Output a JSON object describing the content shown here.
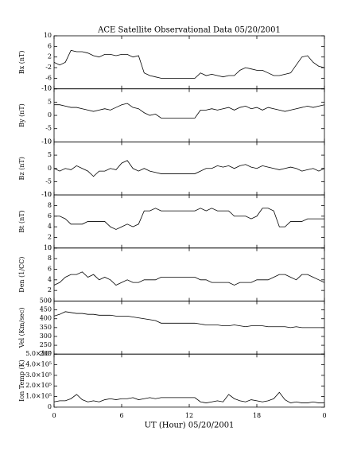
{
  "chart_data": {
    "type": "line",
    "title": "ACE Satellite Observational Data   05/20/2001",
    "xlabel": "UT (Hour)   05/20/2001",
    "xlim": [
      0,
      24
    ],
    "xticks": [
      0,
      6,
      12,
      18,
      {
        "value": 24,
        "label": "0"
      }
    ],
    "x": [
      0,
      0.5,
      1,
      1.5,
      2,
      2.5,
      3,
      3.5,
      4,
      4.5,
      5,
      5.5,
      6,
      6.5,
      7,
      7.5,
      8,
      8.5,
      9,
      9.5,
      10,
      10.5,
      11,
      11.5,
      12,
      12.5,
      13,
      13.5,
      14,
      14.5,
      15,
      15.5,
      16,
      16.5,
      17,
      17.5,
      18,
      18.5,
      19,
      19.5,
      20,
      20.5,
      21,
      21.5,
      22,
      22.5,
      23,
      23.5,
      24
    ],
    "color": "#000000",
    "panels": [
      {
        "ylabel": "Bx (nT)",
        "ylim": [
          -10,
          10
        ],
        "yticks": [
          -10,
          -6,
          -2,
          2,
          6,
          10
        ],
        "values": [
          0,
          -1,
          0,
          4.5,
          4,
          4,
          3.5,
          2.5,
          2,
          3,
          3,
          2.5,
          3,
          3,
          2,
          2.5,
          -4,
          -5,
          -5.5,
          -6,
          -6,
          -6,
          -6,
          -6,
          -6,
          -6,
          -4,
          -5,
          -4.5,
          -5,
          -5.5,
          -5,
          -5,
          -3,
          -2,
          -2.5,
          -3,
          -3,
          -4,
          -5,
          -5,
          -4.5,
          -4,
          -1,
          2,
          2.5,
          0,
          -1.5,
          -2
        ]
      },
      {
        "ylabel": "By (nT)",
        "ylim": [
          -10,
          10
        ],
        "yticks": [
          -10,
          -5,
          0,
          5,
          10
        ],
        "values": [
          4,
          4,
          3.5,
          3,
          3,
          2.5,
          2,
          1.5,
          2,
          2.5,
          2,
          3,
          4,
          4.5,
          3,
          2.5,
          1,
          0,
          0.5,
          -1,
          -1,
          -1,
          -1,
          -1,
          -1,
          -1,
          2,
          2,
          2.5,
          2,
          2.5,
          3,
          2,
          3,
          3.5,
          2.5,
          3,
          2,
          3,
          2.5,
          2,
          1.5,
          2,
          2.5,
          3,
          3.5,
          3,
          3.5,
          4
        ]
      },
      {
        "ylabel": "Bz (nT)",
        "ylim": [
          -10,
          10
        ],
        "yticks": [
          -10,
          -5,
          0,
          5,
          10
        ],
        "values": [
          0,
          -1,
          0,
          -0.5,
          1,
          0,
          -1,
          -3,
          -1,
          -1,
          0,
          -0.5,
          2,
          3,
          0,
          -1,
          0,
          -1,
          -1.5,
          -2,
          -2,
          -2,
          -2,
          -2,
          -2,
          -2,
          -1,
          0,
          0,
          1,
          0.5,
          1,
          0,
          1,
          1.5,
          0.5,
          0,
          1,
          0.5,
          0,
          -0.5,
          0,
          0.5,
          0,
          -1,
          -0.5,
          0,
          -1,
          0
        ]
      },
      {
        "ylabel": "Bt (nT)",
        "ylim": [
          0,
          10
        ],
        "yticks": [
          0,
          2,
          4,
          6,
          8,
          10
        ],
        "values": [
          6,
          6,
          5.5,
          4.5,
          4.5,
          4.5,
          5,
          5,
          5,
          5,
          4,
          3.5,
          4,
          4.5,
          4,
          4.5,
          7,
          7,
          7.5,
          7,
          7,
          7,
          7,
          7,
          7,
          7,
          7.5,
          7,
          7.5,
          7,
          7,
          7,
          6,
          6,
          6,
          5.5,
          6,
          7.5,
          7.5,
          7,
          4,
          4,
          5,
          5,
          5,
          5.5,
          5.5,
          5.5,
          5.5
        ]
      },
      {
        "ylabel": "Den (1/CC)",
        "ylim": [
          0,
          10
        ],
        "yticks": [
          0,
          2,
          4,
          6,
          8,
          10
        ],
        "values": [
          3,
          3.5,
          4.5,
          5,
          5,
          5.5,
          4.5,
          5,
          4,
          4.5,
          4,
          3,
          3.5,
          4,
          3.5,
          3.5,
          4,
          4,
          4,
          4.5,
          4.5,
          4.5,
          4.5,
          4.5,
          4.5,
          4.5,
          4,
          4,
          3.5,
          3.5,
          3.5,
          3.5,
          3,
          3.5,
          3.5,
          3.5,
          4,
          4,
          4,
          4.5,
          5,
          5,
          4.5,
          4,
          5,
          5,
          4.5,
          4,
          3.5
        ]
      },
      {
        "ylabel": "Vel (Km/sec)",
        "ylim": [
          200,
          500
        ],
        "yticks": [
          200,
          250,
          300,
          350,
          400,
          450,
          500
        ],
        "values": [
          415,
          425,
          440,
          435,
          430,
          430,
          425,
          425,
          420,
          420,
          420,
          415,
          415,
          415,
          410,
          405,
          400,
          395,
          390,
          375,
          375,
          375,
          375,
          375,
          375,
          375,
          370,
          365,
          365,
          365,
          360,
          360,
          365,
          360,
          355,
          360,
          360,
          360,
          355,
          355,
          355,
          355,
          350,
          355,
          350,
          350,
          350,
          350,
          350
        ]
      },
      {
        "ylabel": "Ion Temp (K)",
        "ylim": [
          0,
          500000
        ],
        "yticks": [
          0,
          {
            "value": 100000,
            "label": "1.0×10⁵"
          },
          {
            "value": 200000,
            "label": "2.0×10⁵"
          },
          {
            "value": 300000,
            "label": "3.0×10⁵"
          },
          {
            "value": 400000,
            "label": "4.0×10⁵"
          },
          {
            "value": 500000,
            "label": "5.0×10⁵"
          }
        ],
        "values": [
          50000,
          60000,
          60000,
          80000,
          120000,
          70000,
          50000,
          60000,
          50000,
          70000,
          80000,
          70000,
          80000,
          80000,
          90000,
          70000,
          80000,
          90000,
          80000,
          90000,
          90000,
          90000,
          90000,
          90000,
          90000,
          90000,
          50000,
          40000,
          50000,
          60000,
          50000,
          120000,
          80000,
          60000,
          50000,
          70000,
          60000,
          50000,
          60000,
          80000,
          140000,
          70000,
          40000,
          50000,
          40000,
          40000,
          50000,
          40000,
          40000
        ]
      }
    ]
  }
}
